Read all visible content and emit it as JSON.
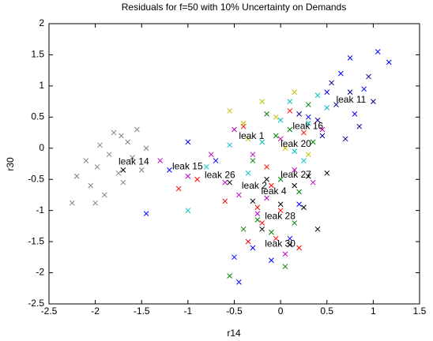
{
  "chart_data": {
    "type": "scatter",
    "title": "Residuals for f=50 with 10% Uncertainty on Demands",
    "x_label": "r14",
    "y_label": "r30",
    "xlim": [
      -2.5,
      1.5
    ],
    "ylim": [
      -2.5,
      2
    ],
    "xticks": [
      -2.5,
      -2,
      -1.5,
      -1,
      -0.5,
      0,
      0.5,
      1,
      1.5
    ],
    "yticks": [
      -2.5,
      -2,
      -1.5,
      -1,
      -0.5,
      0,
      0.5,
      1,
      1.5,
      2
    ],
    "grid": false,
    "marker": "x",
    "series": [
      {
        "color": "#808080",
        "x": [
          -2.25,
          -2.2,
          -2.1,
          -2.05,
          -1.98,
          -1.95,
          -1.9,
          -1.85,
          -1.8,
          -1.75,
          -1.7,
          -1.65,
          -1.6,
          -1.55,
          -1.5,
          -1.45,
          -2.0,
          -1.72
        ],
        "values": [
          -0.88,
          -0.45,
          -0.2,
          -0.6,
          -0.3,
          0.05,
          -0.75,
          -0.1,
          0.25,
          -0.4,
          -0.55,
          0.1,
          -0.15,
          0.3,
          -0.35,
          0.0,
          -0.88,
          0.2
        ]
      },
      {
        "color": "#0000ff",
        "x": [
          -1.45,
          -1.2,
          -1.0,
          -0.7,
          -0.5,
          -0.45,
          -0.3,
          -0.1,
          0.1,
          0.3,
          0.5,
          0.65,
          0.8,
          0.9,
          1.05,
          1.17,
          0.75,
          0.2
        ],
        "values": [
          -1.05,
          -0.35,
          0.1,
          -0.2,
          -1.75,
          -2.15,
          -1.6,
          -1.8,
          -1.45,
          0.5,
          0.9,
          1.2,
          0.55,
          0.95,
          1.55,
          1.38,
          1.45,
          -0.9
        ]
      },
      {
        "color": "#008000",
        "x": [
          -0.55,
          -0.4,
          -0.25,
          -0.1,
          0.0,
          0.1,
          0.2,
          -0.15,
          0.3,
          0.05,
          -0.3,
          0.15,
          0.35,
          -0.05
        ],
        "values": [
          -2.05,
          -1.3,
          -1.15,
          -1.35,
          -0.5,
          0.3,
          -0.7,
          0.55,
          0.7,
          -1.9,
          -0.2,
          -1.2,
          0.1,
          0.2
        ]
      },
      {
        "color": "#ff0000",
        "x": [
          -1.1,
          -0.9,
          -0.6,
          -0.35,
          -0.25,
          -0.2,
          -0.1,
          0.0,
          0.1,
          0.2,
          -0.4,
          -0.15,
          0.25,
          -0.05
        ],
        "values": [
          -0.65,
          -0.5,
          -0.85,
          -1.5,
          -0.95,
          -1.2,
          -0.6,
          -1.0,
          0.6,
          -1.6,
          0.35,
          -0.3,
          0.25,
          -1.45
        ]
      },
      {
        "color": "#00bfbf",
        "x": [
          -0.8,
          -0.55,
          -0.35,
          -0.2,
          0.0,
          0.15,
          0.3,
          0.4,
          0.5,
          -1.0,
          0.25,
          0.1
        ],
        "values": [
          -0.3,
          0.05,
          -0.4,
          0.1,
          0.45,
          -0.05,
          0.4,
          0.85,
          0.65,
          -1.0,
          -0.2,
          0.75
        ]
      },
      {
        "color": "#bf00bf",
        "x": [
          -1.3,
          -1.0,
          -0.75,
          -0.6,
          -0.45,
          -0.3,
          -0.15,
          0.0,
          0.15,
          0.35,
          -0.25,
          0.05,
          0.45,
          -0.5
        ],
        "values": [
          -0.2,
          -0.45,
          -0.1,
          -0.55,
          -0.75,
          -0.1,
          -0.8,
          0.15,
          -0.35,
          -0.55,
          -1.05,
          -1.7,
          0.3,
          0.3
        ]
      },
      {
        "color": "#bfbf00",
        "x": [
          -0.55,
          -0.4,
          -0.2,
          -0.05,
          0.05,
          0.15,
          0.3,
          -0.35
        ],
        "values": [
          0.6,
          0.4,
          0.75,
          0.5,
          0.0,
          0.9,
          -0.1,
          0.15
        ]
      },
      {
        "color": "#000000",
        "x": [
          -1.7,
          -0.55,
          -0.3,
          -0.15,
          0.0,
          0.15,
          0.3,
          0.4,
          -0.2,
          0.5,
          0.1,
          0.25
        ],
        "values": [
          -0.35,
          -0.55,
          -0.85,
          -0.5,
          -0.9,
          -0.6,
          -0.45,
          -1.3,
          -1.3,
          -0.4,
          -1.55,
          -0.95
        ]
      },
      {
        "color": "#00008b",
        "x": [
          0.2,
          0.45,
          0.6,
          0.75,
          0.85,
          0.95,
          0.55,
          0.4,
          0.7,
          1.0
        ],
        "values": [
          0.55,
          0.2,
          0.7,
          0.9,
          0.35,
          1.15,
          1.05,
          0.45,
          0.15,
          0.75
        ]
      }
    ],
    "annotations": [
      {
        "text": "leak 14",
        "x": -1.75,
        "y": -0.22
      },
      {
        "text": "leak 15",
        "x": -1.17,
        "y": -0.3
      },
      {
        "text": "leak 26",
        "x": -0.82,
        "y": -0.44
      },
      {
        "text": "leak 1",
        "x": -0.45,
        "y": 0.19
      },
      {
        "text": "leak 16",
        "x": 0.13,
        "y": 0.35
      },
      {
        "text": "leak 20",
        "x": 0.0,
        "y": 0.06
      },
      {
        "text": "leak 11",
        "x": 0.6,
        "y": 0.77
      },
      {
        "text": "leak 27",
        "x": 0.0,
        "y": -0.43
      },
      {
        "text": "leak 2",
        "x": -0.42,
        "y": -0.61
      },
      {
        "text": "leak 4",
        "x": -0.21,
        "y": -0.7
      },
      {
        "text": "leak 28",
        "x": -0.17,
        "y": -1.1
      },
      {
        "text": "leak 30",
        "x": -0.17,
        "y": -1.54
      }
    ]
  }
}
